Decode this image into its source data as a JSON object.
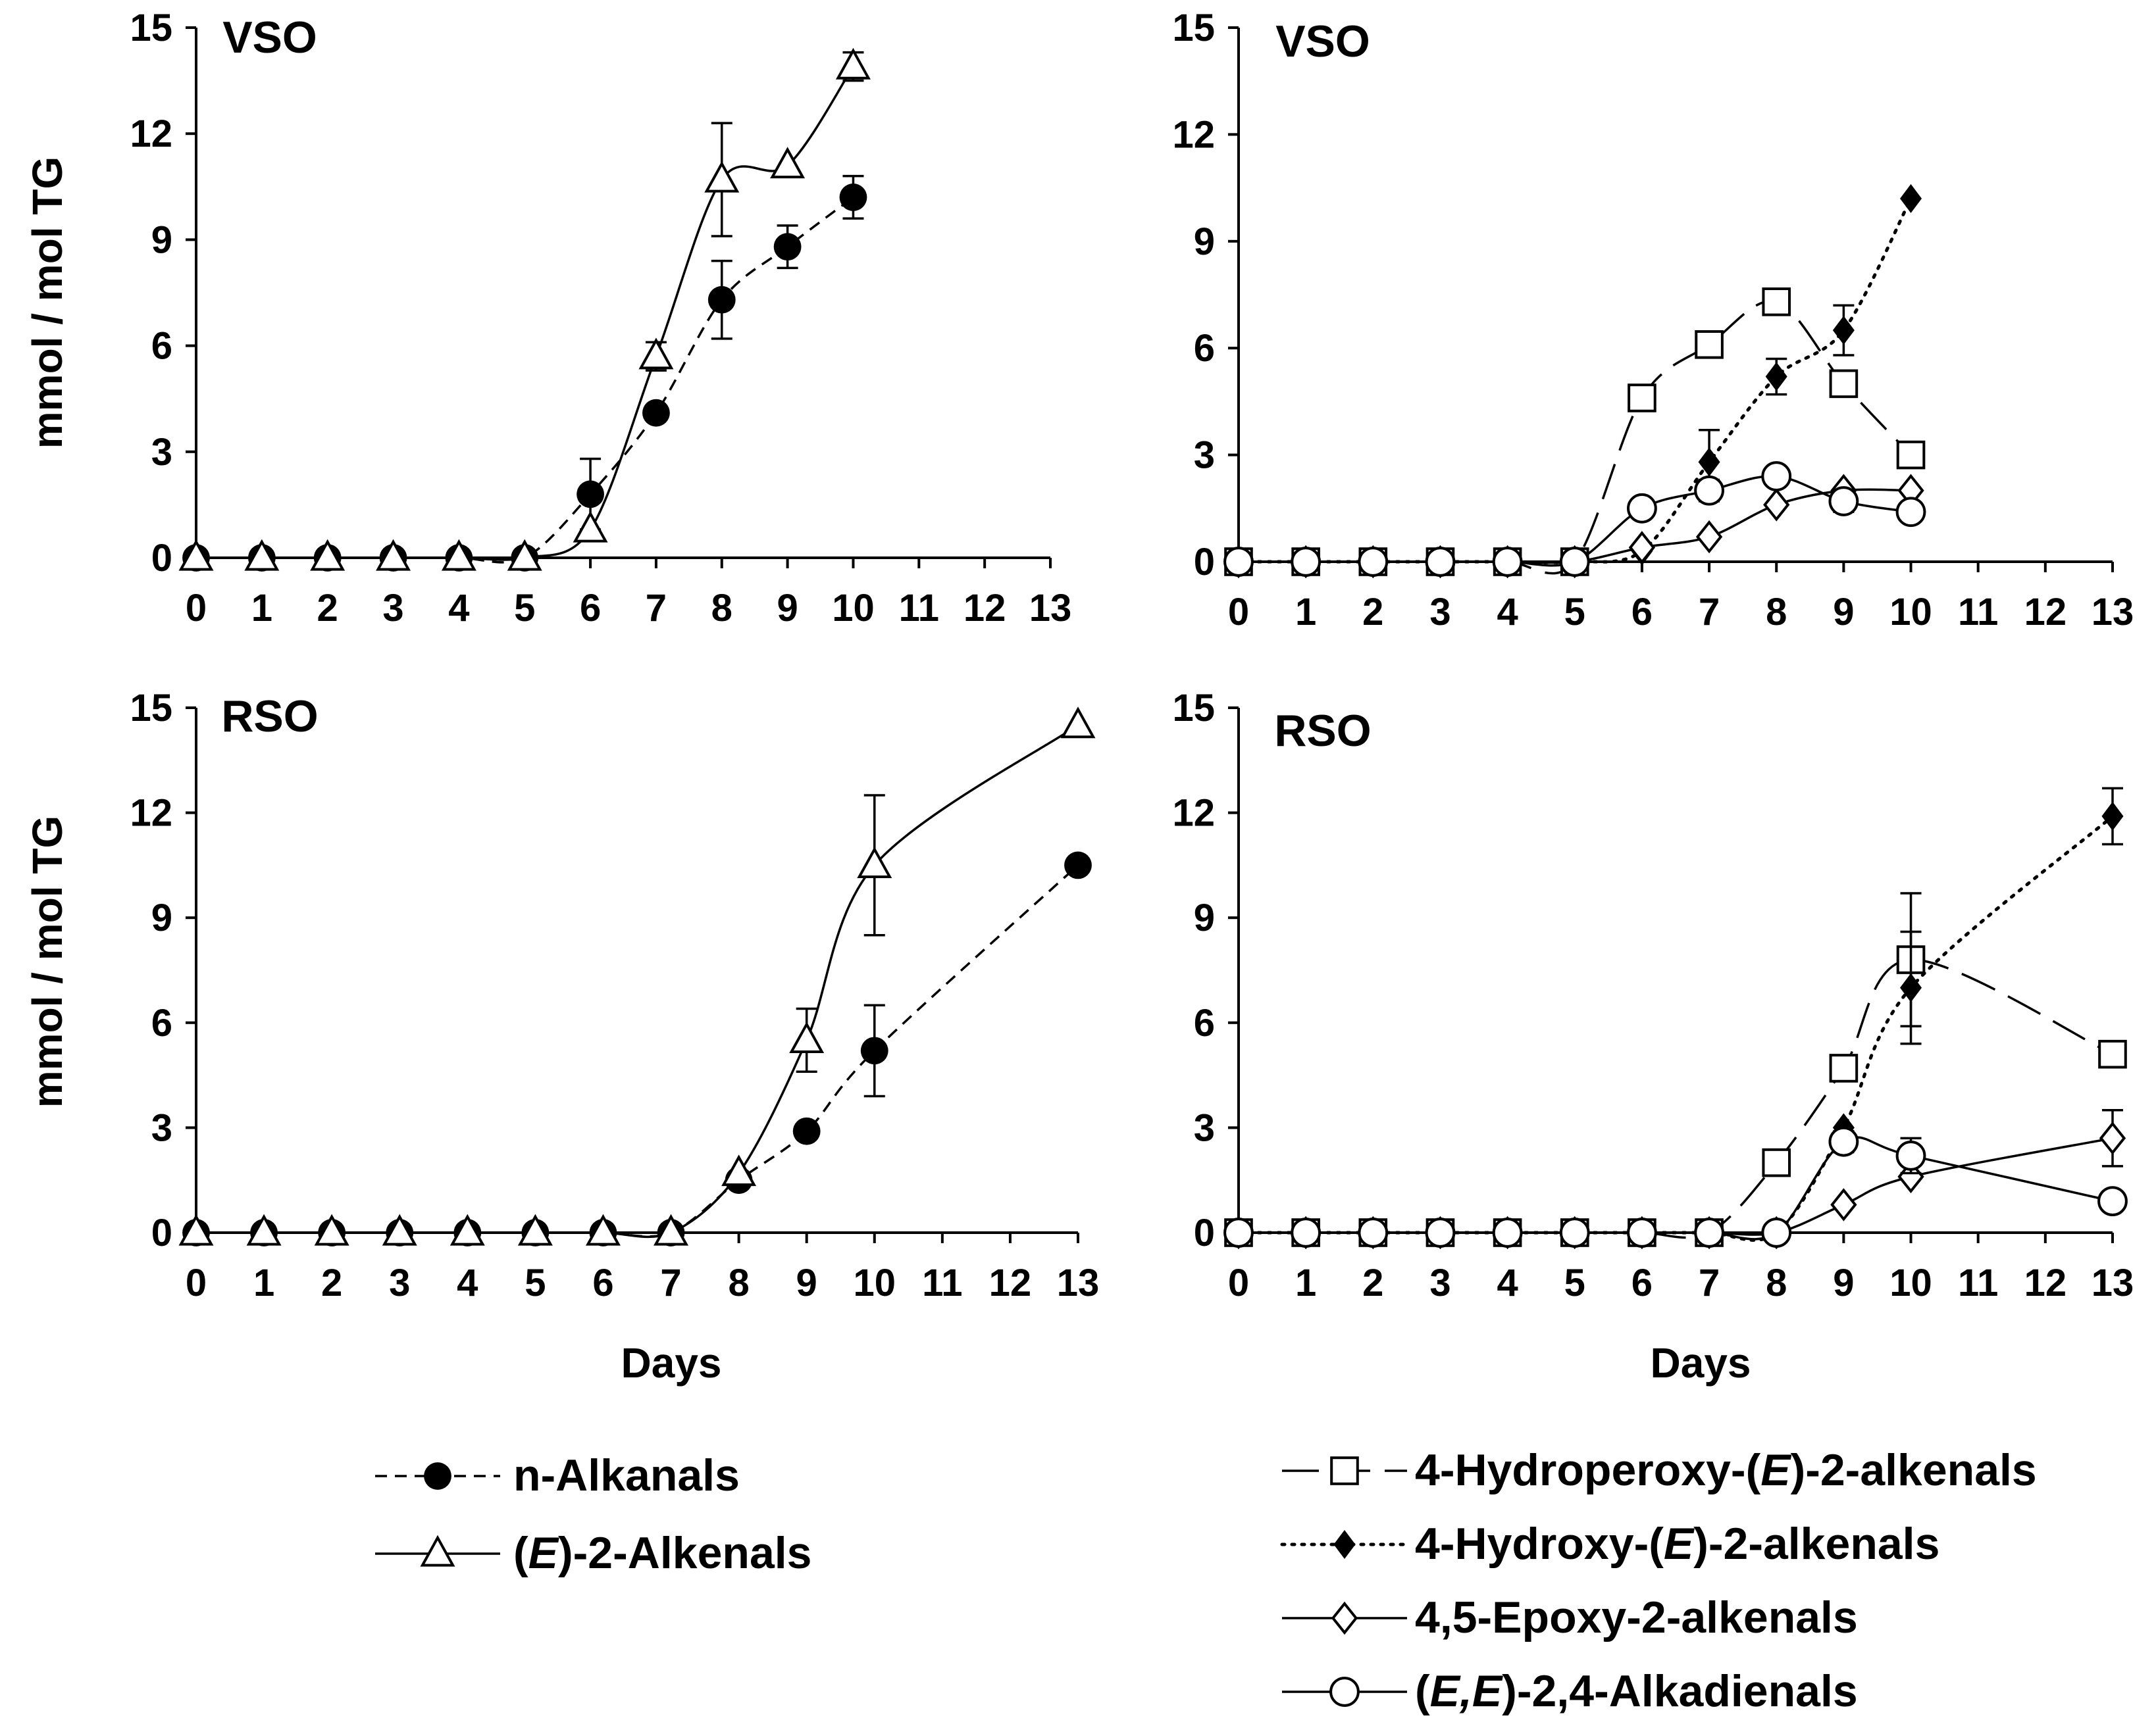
{
  "figure": {
    "shared_ylabel_top": "mmol / mol TG",
    "shared_ylabel_bottom": "mmol / mol TG",
    "shared_xlabel_left": "Days",
    "shared_xlabel_right": "Days"
  },
  "legend_left": [
    {
      "series": "n-Alkanals",
      "label": "n-Alkanals"
    },
    {
      "series": "(E)-2-Alkenals",
      "label_parts": [
        "(",
        "E",
        ")-2-Alkenals"
      ]
    }
  ],
  "legend_right": [
    {
      "series": "4-Hydroperoxy-(E)-2-alkenals",
      "label_parts": [
        "4-Hydroperoxy-(",
        "E",
        ")-2-alkenals"
      ]
    },
    {
      "series": "4-Hydroxy-(E)-2-alkenals",
      "label_parts": [
        "4-Hydroxy-(",
        "E",
        ")-2-alkenals"
      ]
    },
    {
      "series": "4,5-Epoxy-2-alkenals",
      "label": "4,5-Epoxy-2-alkenals"
    },
    {
      "series": "(E,E)-2,4-Alkadienals",
      "label_parts": [
        "(",
        "E,E",
        ")-2,4-Alkadienals"
      ]
    }
  ],
  "chart_data": [
    {
      "type": "line",
      "id": "vso-left",
      "title": "VSO",
      "xlabel": "",
      "ylabel": "mmol / mol TG",
      "xlim": [
        0,
        13
      ],
      "ylim": [
        0,
        15
      ],
      "xticks": [
        0,
        1,
        2,
        3,
        4,
        5,
        6,
        7,
        8,
        9,
        10,
        11,
        12,
        13
      ],
      "yticks": [
        0,
        3,
        6,
        9,
        12,
        15
      ],
      "series": [
        {
          "name": "n-Alkanals",
          "marker": "filled-circle",
          "line": "dashed",
          "x": [
            0,
            1,
            2,
            3,
            4,
            5,
            6,
            7,
            8,
            9,
            10
          ],
          "y": [
            0,
            0,
            0,
            0,
            0,
            0,
            1.8,
            4.1,
            7.3,
            8.8,
            10.2
          ],
          "err": [
            0,
            0,
            0,
            0,
            0,
            0,
            1.0,
            0,
            1.1,
            0.6,
            0.6
          ]
        },
        {
          "name": "(E)-2-Alkenals",
          "marker": "open-triangle",
          "line": "solid",
          "x": [
            0,
            1,
            2,
            3,
            4,
            5,
            6,
            7,
            8,
            9,
            10
          ],
          "y": [
            0,
            0,
            0,
            0,
            0,
            0,
            0.8,
            5.7,
            10.7,
            11.1,
            13.9
          ],
          "err": [
            0,
            0,
            0,
            0,
            0,
            0,
            0,
            0.4,
            1.6,
            0,
            0.4
          ]
        }
      ]
    },
    {
      "type": "line",
      "id": "vso-right",
      "title": "VSO",
      "xlabel": "",
      "ylabel": "",
      "xlim": [
        0,
        13
      ],
      "ylim": [
        0,
        15
      ],
      "xticks": [
        0,
        1,
        2,
        3,
        4,
        5,
        6,
        7,
        8,
        9,
        10,
        11,
        12,
        13
      ],
      "yticks": [
        0,
        3,
        6,
        9,
        12,
        15
      ],
      "series": [
        {
          "name": "4-Hydroperoxy-(E)-2-alkenals",
          "marker": "open-square",
          "line": "longdash",
          "x": [
            0,
            1,
            2,
            3,
            4,
            5,
            6,
            7,
            8,
            9,
            10
          ],
          "y": [
            0,
            0,
            0,
            0,
            0,
            0,
            4.6,
            6.1,
            7.3,
            5.0,
            3.0
          ],
          "err": [
            0,
            0,
            0,
            0,
            0,
            0,
            0,
            0,
            0,
            0,
            0
          ]
        },
        {
          "name": "4-Hydroxy-(E)-2-alkenals",
          "marker": "filled-diamond",
          "line": "dotted",
          "x": [
            0,
            1,
            2,
            3,
            4,
            5,
            6,
            7,
            8,
            9,
            10
          ],
          "y": [
            0,
            0,
            0,
            0,
            0,
            0,
            0.3,
            2.8,
            5.2,
            6.5,
            10.2
          ],
          "err": [
            0,
            0,
            0,
            0,
            0,
            0,
            0,
            0.9,
            0.5,
            0.7,
            0
          ]
        },
        {
          "name": "4,5-Epoxy-2-alkenals",
          "marker": "open-diamond",
          "line": "solid",
          "x": [
            0,
            1,
            2,
            3,
            4,
            5,
            6,
            7,
            8,
            9,
            10
          ],
          "y": [
            0,
            0,
            0,
            0,
            0,
            0,
            0.4,
            0.7,
            1.6,
            2.0,
            2.0
          ],
          "err": [
            0,
            0,
            0,
            0,
            0,
            0,
            0,
            0,
            0,
            0,
            0
          ]
        },
        {
          "name": "(E,E)-2,4-Alkadienals",
          "marker": "open-circle",
          "line": "solid",
          "x": [
            0,
            1,
            2,
            3,
            4,
            5,
            6,
            7,
            8,
            9,
            10
          ],
          "y": [
            0,
            0,
            0,
            0,
            0,
            0,
            1.5,
            2.0,
            2.4,
            1.7,
            1.4
          ],
          "err": [
            0,
            0,
            0,
            0,
            0,
            0,
            0,
            0.3,
            0,
            0.3,
            0
          ]
        }
      ]
    },
    {
      "type": "line",
      "id": "rso-left",
      "title": "RSO",
      "xlabel": "Days",
      "ylabel": "mmol / mol TG",
      "xlim": [
        0,
        13
      ],
      "ylim": [
        0,
        15
      ],
      "xticks": [
        0,
        1,
        2,
        3,
        4,
        5,
        6,
        7,
        8,
        9,
        10,
        11,
        12,
        13
      ],
      "yticks": [
        0,
        3,
        6,
        9,
        12,
        15
      ],
      "series": [
        {
          "name": "n-Alkanals",
          "marker": "filled-circle",
          "line": "dashed",
          "x": [
            0,
            1,
            2,
            3,
            4,
            5,
            6,
            7,
            8,
            9,
            10,
            13
          ],
          "y": [
            0,
            0,
            0,
            0,
            0,
            0,
            0,
            0,
            1.5,
            2.9,
            5.2,
            10.5
          ],
          "err": [
            0,
            0,
            0,
            0,
            0,
            0,
            0,
            0,
            0,
            0,
            1.3,
            0
          ]
        },
        {
          "name": "(E)-2-Alkenals",
          "marker": "open-triangle",
          "line": "solid",
          "x": [
            0,
            1,
            2,
            3,
            4,
            5,
            6,
            7,
            8,
            9,
            10,
            13
          ],
          "y": [
            0,
            0,
            0,
            0,
            0,
            0,
            0,
            0,
            1.7,
            5.5,
            10.5,
            14.5
          ],
          "err": [
            0,
            0,
            0,
            0,
            0,
            0,
            0,
            0,
            0,
            0.9,
            2.0,
            0
          ]
        }
      ]
    },
    {
      "type": "line",
      "id": "rso-right",
      "title": "RSO",
      "xlabel": "Days",
      "ylabel": "",
      "xlim": [
        0,
        13
      ],
      "ylim": [
        0,
        15
      ],
      "xticks": [
        0,
        1,
        2,
        3,
        4,
        5,
        6,
        7,
        8,
        9,
        10,
        11,
        12,
        13
      ],
      "yticks": [
        0,
        3,
        6,
        9,
        12,
        15
      ],
      "series": [
        {
          "name": "4-Hydroperoxy-(E)-2-alkenals",
          "marker": "open-square",
          "line": "longdash",
          "x": [
            0,
            1,
            2,
            3,
            4,
            5,
            6,
            7,
            8,
            9,
            10,
            13
          ],
          "y": [
            0,
            0,
            0,
            0,
            0,
            0,
            0,
            0,
            2.0,
            4.7,
            7.8,
            5.1
          ],
          "err": [
            0,
            0,
            0,
            0,
            0,
            0,
            0,
            0,
            0,
            0,
            1.9,
            0
          ]
        },
        {
          "name": "4-Hydroxy-(E)-2-alkenals",
          "marker": "filled-diamond",
          "line": "dotted",
          "x": [
            0,
            1,
            2,
            3,
            4,
            5,
            6,
            7,
            8,
            9,
            10,
            13
          ],
          "y": [
            0,
            0,
            0,
            0,
            0,
            0,
            0,
            0,
            0,
            3.0,
            7.0,
            11.9
          ],
          "err": [
            0,
            0,
            0,
            0,
            0,
            0,
            0,
            0,
            0,
            0,
            1.6,
            0.8
          ]
        },
        {
          "name": "4,5-Epoxy-2-alkenals",
          "marker": "open-diamond",
          "line": "solid",
          "x": [
            0,
            1,
            2,
            3,
            4,
            5,
            6,
            7,
            8,
            9,
            10,
            13
          ],
          "y": [
            0,
            0,
            0,
            0,
            0,
            0,
            0,
            0,
            0,
            0.8,
            1.6,
            2.7
          ],
          "err": [
            0,
            0,
            0,
            0,
            0,
            0,
            0,
            0,
            0,
            0,
            0,
            0.8
          ]
        },
        {
          "name": "(E,E)-2,4-Alkadienals",
          "marker": "open-circle",
          "line": "solid",
          "x": [
            0,
            1,
            2,
            3,
            4,
            5,
            6,
            7,
            8,
            9,
            10,
            13
          ],
          "y": [
            0,
            0,
            0,
            0,
            0,
            0,
            0,
            0,
            0,
            2.6,
            2.2,
            0.9
          ],
          "err": [
            0,
            0,
            0,
            0,
            0,
            0,
            0,
            0,
            0,
            0.3,
            0.5,
            0
          ]
        }
      ]
    }
  ]
}
